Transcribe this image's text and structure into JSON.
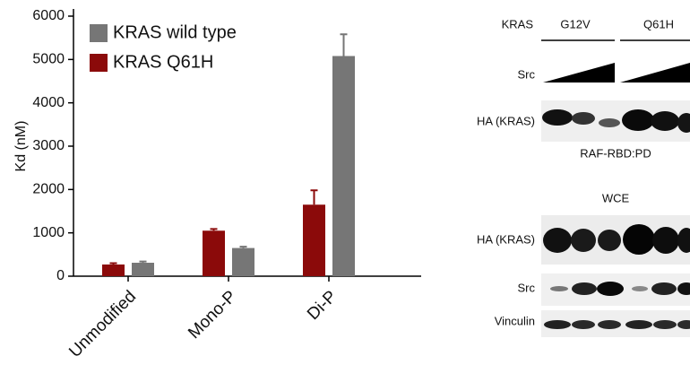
{
  "chart_data": {
    "type": "bar",
    "y_label": "Kd (nM)",
    "categories": [
      "Unmodified",
      "Mono-P",
      "Di-P"
    ],
    "series": [
      {
        "name": "KRAS wild type",
        "color": "#767676",
        "values": [
          310,
          650,
          5080
        ],
        "errors": [
          30,
          30,
          500
        ]
      },
      {
        "name": "KRAS Q61H",
        "color": "#8b0a0a",
        "values": [
          270,
          1050,
          1650
        ],
        "errors": [
          30,
          40,
          330
        ]
      }
    ],
    "ylim": [
      0,
      6000
    ],
    "yticks": [
      0,
      1000,
      2000,
      3000,
      4000,
      5000,
      6000
    ]
  },
  "blot": {
    "header": "KRAS",
    "groups": [
      "G12V",
      "Q61H"
    ],
    "treatment": "Src",
    "pulldown": {
      "row": "HA (KRAS)",
      "caption": "RAF-RBD:PD"
    },
    "wce": {
      "title": "WCE",
      "rows": [
        "HA (KRAS)",
        "Src",
        "Vinculin"
      ]
    }
  }
}
